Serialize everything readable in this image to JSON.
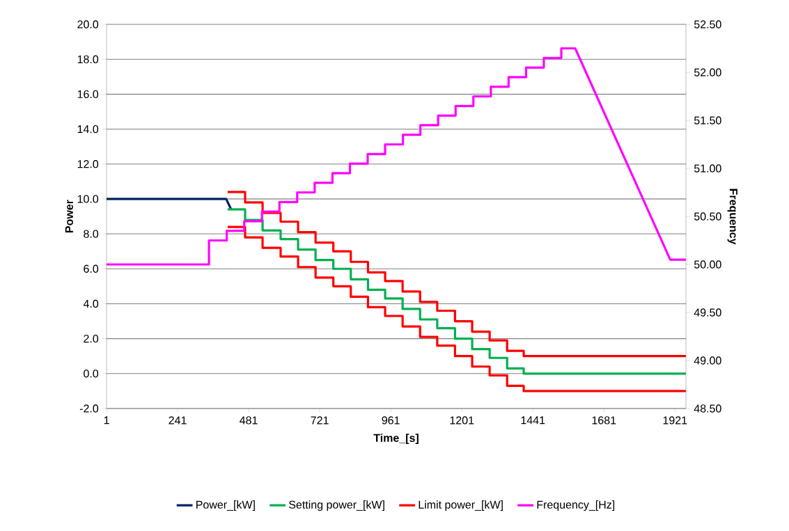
{
  "chart_data": {
    "type": "line",
    "xlabel": "Time_[s]",
    "ylabel": "Power",
    "y2label": "Frequency",
    "xlim": [
      1,
      1958
    ],
    "xticks": [
      1,
      241,
      481,
      721,
      961,
      1201,
      1441,
      1681,
      1921
    ],
    "ylim": [
      -2,
      20
    ],
    "yticks": [
      {
        "value": -2,
        "label": "-2.0"
      },
      {
        "value": 0,
        "label": "0.0"
      },
      {
        "value": 2,
        "label": "2.0"
      },
      {
        "value": 4,
        "label": "4.0"
      },
      {
        "value": 6,
        "label": "6.0"
      },
      {
        "value": 8,
        "label": "8.0"
      },
      {
        "value": 10,
        "label": "10.0"
      },
      {
        "value": 12,
        "label": "12.0"
      },
      {
        "value": 14,
        "label": "14.0"
      },
      {
        "value": 16,
        "label": "16.0"
      },
      {
        "value": 18,
        "label": "18.0"
      },
      {
        "value": 20,
        "label": "20.0"
      }
    ],
    "y2lim": [
      48.5,
      52.5
    ],
    "y2ticks": [
      {
        "value": 48.5,
        "label": "48.50"
      },
      {
        "value": 49,
        "label": "49.00"
      },
      {
        "value": 49.5,
        "label": "49.50"
      },
      {
        "value": 50,
        "label": "50.00"
      },
      {
        "value": 50.5,
        "label": "50.50"
      },
      {
        "value": 51,
        "label": "51.00"
      },
      {
        "value": 51.5,
        "label": "51.50"
      },
      {
        "value": 52,
        "label": "52.00"
      },
      {
        "value": 52.5,
        "label": "52.50"
      }
    ],
    "grid": "y",
    "legend": "bottom",
    "series": [
      {
        "name": "Power_[kW]",
        "color": "#002060",
        "x": [
          1,
          405,
          422
        ],
        "values": [
          10.0,
          10.0,
          9.4
        ]
      },
      {
        "name": "Setting power_[kW]",
        "type": "step",
        "color": "#00b050",
        "x": [
          410,
          469,
          528,
          589,
          648,
          707,
          767,
          826,
          884,
          942,
          1001,
          1060,
          1118,
          1178,
          1236,
          1295,
          1354,
          1410,
          1958
        ],
        "values": [
          9.4,
          8.8,
          8.2,
          7.7,
          7.1,
          6.5,
          6.0,
          5.4,
          4.8,
          4.3,
          3.7,
          3.1,
          2.6,
          2.0,
          1.4,
          0.9,
          0.3,
          0.0,
          0.0
        ]
      },
      {
        "name": "Limit power_[kW]",
        "type": "step",
        "color": "#ff0000",
        "x": [
          410,
          469,
          528,
          589,
          648,
          707,
          767,
          826,
          884,
          942,
          1001,
          1060,
          1118,
          1178,
          1236,
          1295,
          1354,
          1410,
          1958
        ],
        "values": [
          10.4,
          9.8,
          9.2,
          8.7,
          8.1,
          7.5,
          7.0,
          6.4,
          5.8,
          5.3,
          4.7,
          4.1,
          3.6,
          3.0,
          2.4,
          1.9,
          1.3,
          1.0,
          1.0
        ]
      },
      {
        "type": "step",
        "color": "#ff0000",
        "x": [
          410,
          469,
          528,
          589,
          648,
          707,
          767,
          826,
          884,
          942,
          1001,
          1060,
          1118,
          1178,
          1236,
          1295,
          1354,
          1410,
          1958
        ],
        "values": [
          8.4,
          7.8,
          7.2,
          6.7,
          6.1,
          5.5,
          5.0,
          4.4,
          3.8,
          3.3,
          2.7,
          2.1,
          1.6,
          1.0,
          0.4,
          -0.1,
          -0.7,
          -1.0,
          -1.0
        ]
      },
      {
        "name": "Frequency_[Hz]",
        "axis": "y2",
        "color": "#ff00ff",
        "x": [
          1,
          347,
          347,
          407,
          407,
          466,
          466,
          526,
          526,
          585,
          585,
          645,
          645,
          704,
          704,
          764,
          764,
          823,
          823,
          883,
          883,
          942,
          942,
          1002,
          1002,
          1061,
          1061,
          1121,
          1121,
          1180,
          1180,
          1240,
          1240,
          1299,
          1299,
          1359,
          1359,
          1418,
          1418,
          1478,
          1478,
          1537,
          1537,
          1584,
          1905,
          1958
        ],
        "values": [
          50.0,
          50.0,
          50.25,
          50.25,
          50.35,
          50.35,
          50.45,
          50.45,
          50.55,
          50.55,
          50.65,
          50.65,
          50.75,
          50.75,
          50.85,
          50.85,
          50.95,
          50.95,
          51.05,
          51.05,
          51.15,
          51.15,
          51.25,
          51.25,
          51.35,
          51.35,
          51.45,
          51.45,
          51.55,
          51.55,
          51.65,
          51.65,
          51.75,
          51.75,
          51.85,
          51.85,
          51.95,
          51.95,
          52.05,
          52.05,
          52.15,
          52.15,
          52.25,
          52.25,
          50.05,
          50.05
        ]
      }
    ]
  }
}
